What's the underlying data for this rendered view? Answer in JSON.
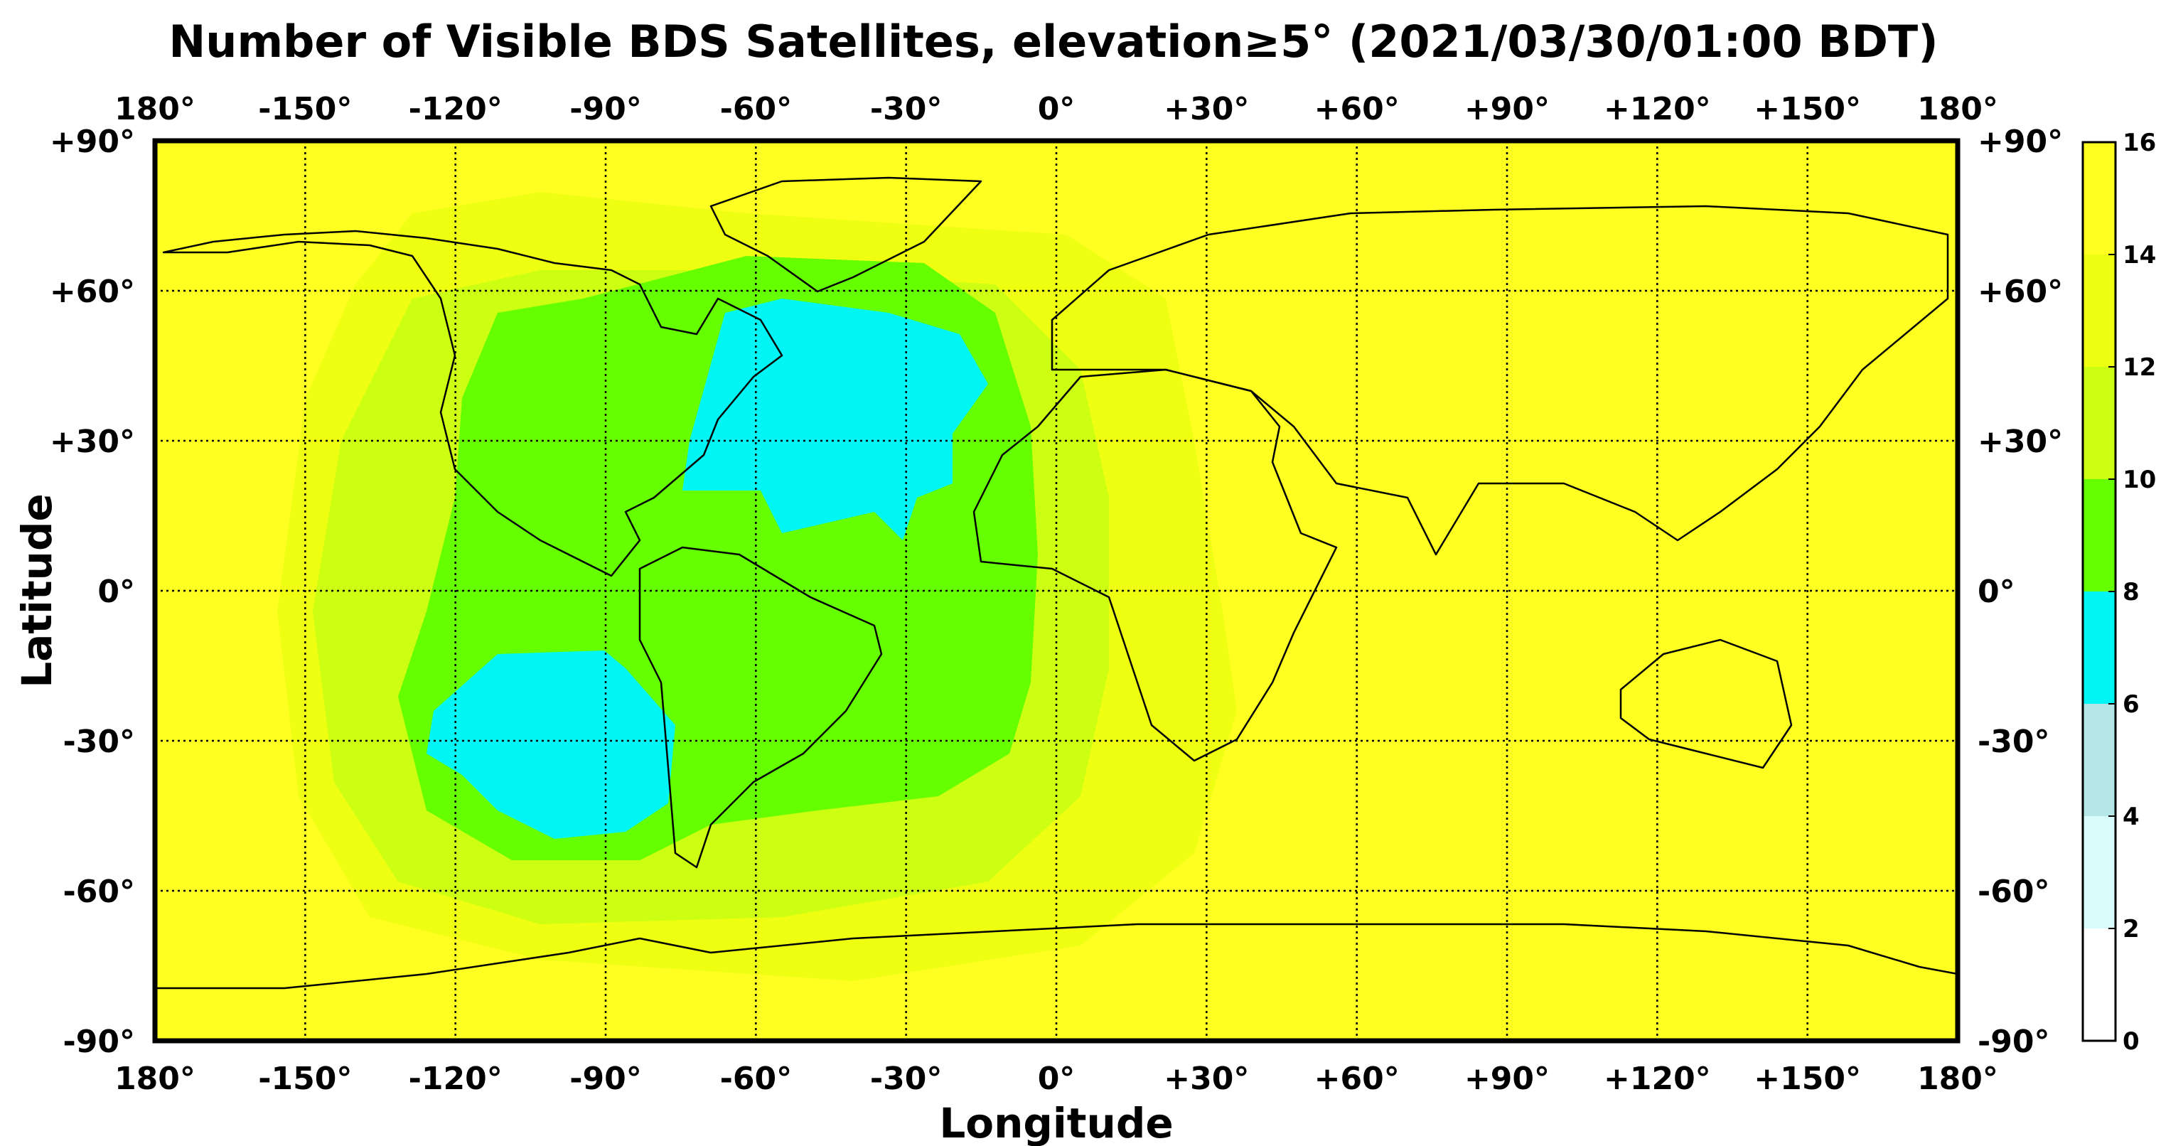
{
  "title": "Number of Visible BDS Satellites, elevation≥5° (2021/03/30/01:00 BDT)",
  "xlabel": "Longitude",
  "ylabel": "Latitude",
  "x_ticks": [
    "180°",
    "-150°",
    "-120°",
    "-90°",
    "-60°",
    "-30°",
    "0°",
    "+30°",
    "+60°",
    "+90°",
    "+120°",
    "+150°",
    "180°"
  ],
  "y_ticks": [
    "+90°",
    "+60°",
    "+30°",
    "0°",
    "-30°",
    "-60°",
    "-90°"
  ],
  "colorbar": {
    "ticks": [
      "0",
      "2",
      "4",
      "6",
      "8",
      "10",
      "12",
      "14",
      "16"
    ],
    "levels": [
      {
        "range": [
          0,
          2
        ],
        "color": "#ffffff"
      },
      {
        "range": [
          2,
          4
        ],
        "color": "#d8fcfc"
      },
      {
        "range": [
          4,
          6
        ],
        "color": "#b4e6e6"
      },
      {
        "range": [
          6,
          8
        ],
        "color": "#00f5f5"
      },
      {
        "range": [
          8,
          10
        ],
        "color": "#66ff00"
      },
      {
        "range": [
          10,
          12
        ],
        "color": "#ccff11"
      },
      {
        "range": [
          12,
          14
        ],
        "color": "#eeff11"
      },
      {
        "range": [
          14,
          16
        ],
        "color": "#ffff22"
      }
    ]
  },
  "chart_data": {
    "type": "heatmap",
    "projection": "equirectangular",
    "xlim": [
      -180,
      180
    ],
    "ylim": [
      -90,
      90
    ],
    "grid": true,
    "background_value": 15,
    "regions": [
      {
        "lon": [
          -125,
          0
        ],
        "lat": [
          -55,
          60
        ],
        "value": 11
      },
      {
        "lon": [
          -115,
          -10
        ],
        "lat": [
          -45,
          55
        ],
        "value": 9
      },
      {
        "lon": [
          -70,
          -15
        ],
        "lat": [
          10,
          52
        ],
        "value": 7
      },
      {
        "lon": [
          -125,
          -75
        ],
        "lat": [
          -48,
          -12
        ],
        "value": 7
      }
    ]
  }
}
